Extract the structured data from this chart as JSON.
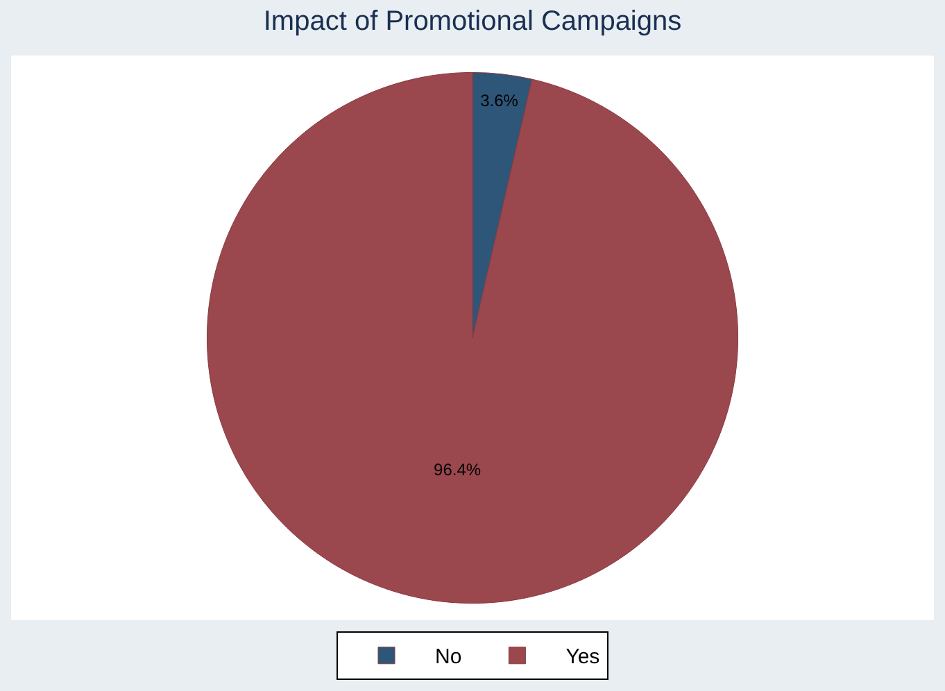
{
  "chart_data": {
    "type": "pie",
    "title": "Impact of Promotional Campaigns",
    "categories": [
      "No",
      "Yes"
    ],
    "values": [
      3.6,
      96.4
    ],
    "colors": [
      "#2e5679",
      "#9a474d"
    ],
    "value_labels": [
      "3.6%",
      "96.4%"
    ],
    "legend": "bottom"
  }
}
